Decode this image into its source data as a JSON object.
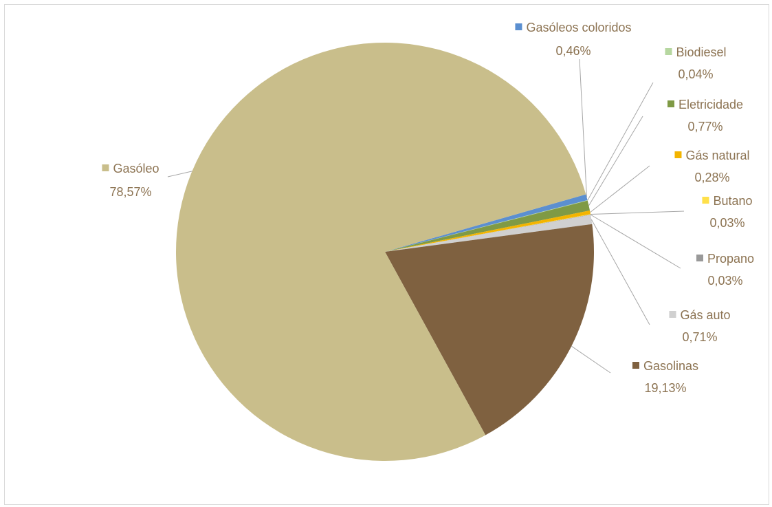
{
  "chart_data": {
    "type": "pie",
    "title": "",
    "slices": [
      {
        "name": "Gasóleos coloridos",
        "value": 0.46,
        "label": "0,46%",
        "color": "#5b8fd0"
      },
      {
        "name": "Biodiesel",
        "value": 0.04,
        "label": "0,04%",
        "color": "#b6d7a0"
      },
      {
        "name": "Eletricidade",
        "value": 0.77,
        "label": "0,77%",
        "color": "#7f9a45"
      },
      {
        "name": "Gás natural",
        "value": 0.28,
        "label": "0,28%",
        "color": "#f3b400"
      },
      {
        "name": "Butano",
        "value": 0.03,
        "label": "0,03%",
        "color": "#ffe04a"
      },
      {
        "name": "Propano",
        "value": 0.03,
        "label": "0,03%",
        "color": "#999999"
      },
      {
        "name": "Gás auto",
        "value": 0.71,
        "label": "0,71%",
        "color": "#d0d0d0"
      },
      {
        "name": "Gasolinas",
        "value": 19.13,
        "label": "19,13%",
        "color": "#7f6140"
      },
      {
        "name": "Gasóleo",
        "value": 78.57,
        "label": "78,57%",
        "color": "#c9be8b"
      }
    ],
    "label_color": "#8c7352",
    "leader_line_color": "#a6a6a6"
  }
}
